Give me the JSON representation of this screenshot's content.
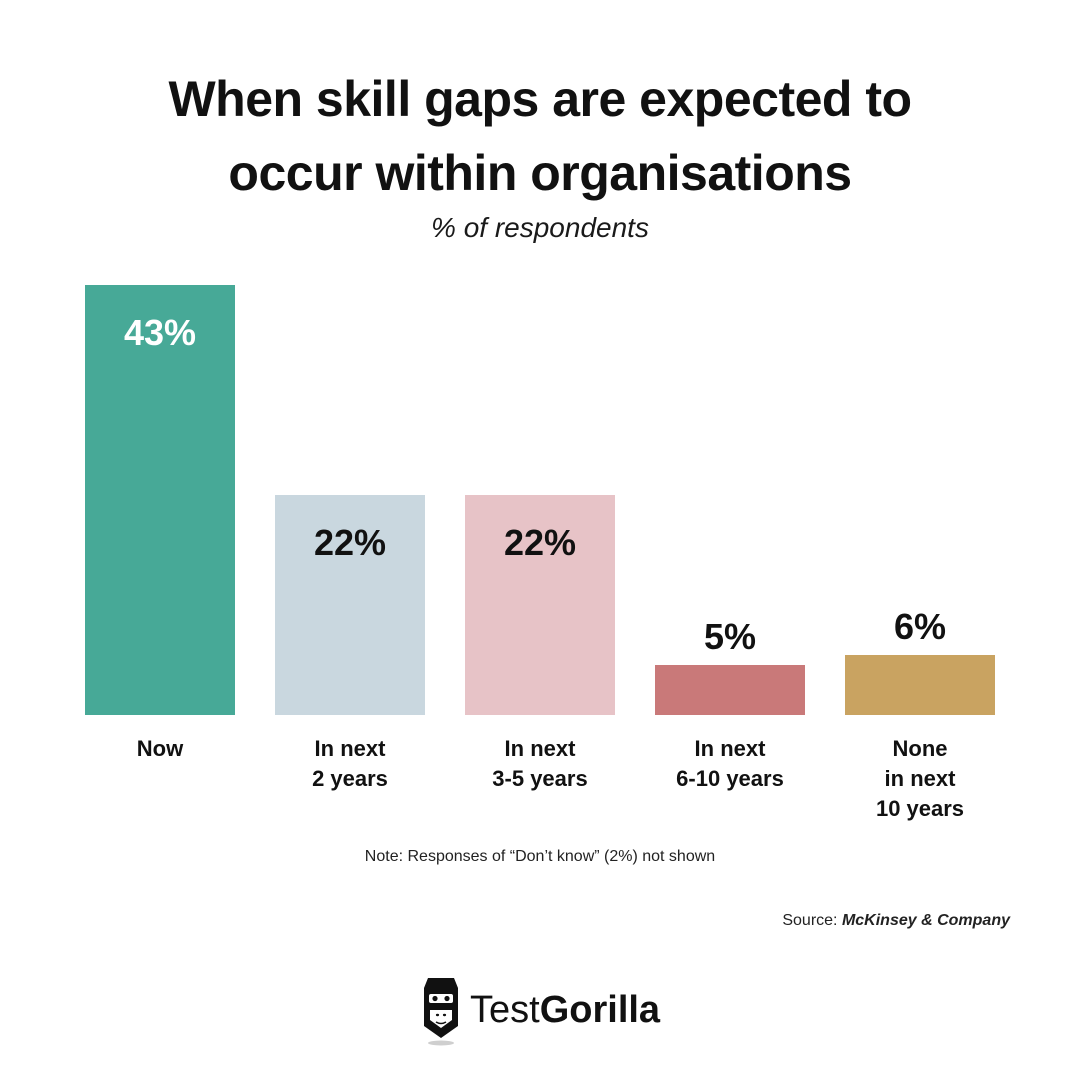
{
  "header": {
    "title_line1": "When skill gaps are expected to",
    "title_line2": "occur within organisations",
    "subtitle": "% of respondents"
  },
  "footer": {
    "note": "Note: Responses of “Don’t know” (2%) not shown",
    "source_prefix": "Source: ",
    "source_company": "McKinsey & Company"
  },
  "brand": {
    "logo_icon": "gorilla-head-icon",
    "name_light": "Test",
    "name_bold": "Gorilla"
  },
  "chart_data": {
    "type": "bar",
    "categories": [
      [
        "Now"
      ],
      [
        "In next",
        "2 years"
      ],
      [
        "In next",
        "3-5 years"
      ],
      [
        "In next",
        "6-10 years"
      ],
      [
        "None",
        "in next",
        "10 years"
      ]
    ],
    "values": [
      43,
      22,
      22,
      5,
      6
    ],
    "value_labels": [
      "43%",
      "22%",
      "22%",
      "5%",
      "6%"
    ],
    "colors": [
      "#47a997",
      "#c9d7df",
      "#e7c3c7",
      "#c97979",
      "#c9a361"
    ],
    "label_colors": [
      "#ffffff",
      "#111111",
      "#111111",
      "#111111",
      "#111111"
    ],
    "unit": "%",
    "ylim": [
      0,
      43
    ],
    "grid": false,
    "legend": "none"
  }
}
